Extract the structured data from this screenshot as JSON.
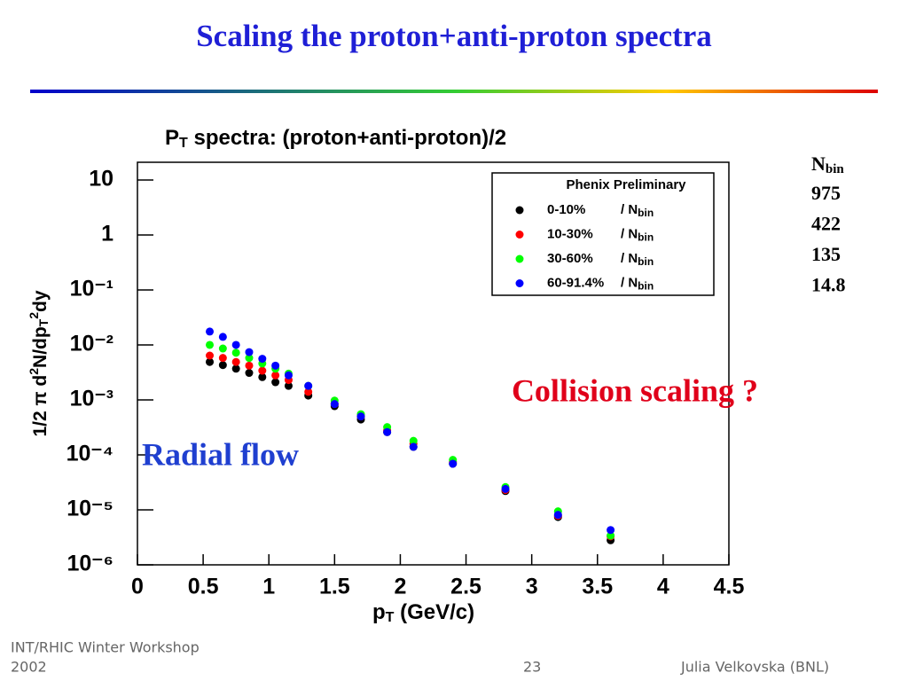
{
  "slide_title": "Scaling the proton+anti-proton spectra",
  "footer": {
    "left": [
      "INT/RHIC Winter Workshop",
      "2002"
    ],
    "page": "23",
    "author": "Julia Velkovska (BNL)"
  },
  "nbin_table": {
    "header": [
      "N",
      "bin"
    ],
    "values": [
      975,
      422,
      135,
      14.8
    ]
  },
  "chart_data": {
    "type": "scatter",
    "title": [
      "P",
      "T",
      " spectra: (proton+anti-proton)/2"
    ],
    "xlabel": [
      "p",
      "T",
      " (GeV/c)"
    ],
    "ylabel": [
      "1/2 π d",
      "2",
      "N/dp",
      "T",
      "2",
      "dy"
    ],
    "legend_title": "Phenix Preliminary",
    "legend_suffix": [
      "/ N",
      "bin"
    ],
    "annotations": [
      {
        "text": "Collision scaling ?",
        "color": "#e0001a"
      },
      {
        "text": "Radial flow",
        "color": "#1f3fd0"
      }
    ],
    "log_y": true,
    "x": [
      0.55,
      0.65,
      0.75,
      0.85,
      0.95,
      1.05,
      1.15,
      1.3,
      1.5,
      1.7,
      1.9,
      2.1,
      2.4,
      2.8,
      3.2,
      3.6
    ],
    "series": [
      {
        "name": "0-10%",
        "color": "#000000",
        "values": [
          0.0049,
          0.0043,
          0.0037,
          0.0031,
          0.0026,
          0.0021,
          0.0018,
          0.0012,
          0.00077,
          0.00044,
          0.00026,
          0.00014,
          6.9e-05,
          2.2e-05,
          7.4e-06,
          2.8e-06
        ]
      },
      {
        "name": "10-30%",
        "color": "#ff0000",
        "values": [
          0.0064,
          0.0058,
          0.0049,
          0.0042,
          0.0034,
          0.0028,
          0.0023,
          0.0014,
          0.00084,
          0.0005,
          0.00028,
          0.00016,
          7.4e-05,
          2.3e-05,
          7.8e-06,
          3.3e-06
        ]
      },
      {
        "name": "30-60%",
        "color": "#00ff00",
        "values": [
          0.01,
          0.0086,
          0.0072,
          0.0058,
          0.0046,
          0.0037,
          0.003,
          0.0018,
          0.00097,
          0.00055,
          0.00032,
          0.00018,
          8.1e-05,
          2.6e-05,
          9.4e-06,
          3.4e-06
        ]
      },
      {
        "name": "60-91.4%",
        "color": "#0000ff",
        "values": [
          0.0175,
          0.014,
          0.01,
          0.0074,
          0.0056,
          0.0042,
          0.0028,
          0.0018,
          0.00084,
          0.0005,
          0.00026,
          0.00014,
          6.9e-05,
          2.4e-05,
          8.1e-06,
          4.3e-06
        ]
      }
    ],
    "xlim": [
      0,
      4.5
    ],
    "xticks": [
      0,
      0.5,
      1,
      1.5,
      2,
      2.5,
      3,
      3.5,
      4,
      4.5
    ],
    "ylim": [
      1e-06,
      21
    ],
    "yticks": [
      {
        "value": 1e-06,
        "label": "10⁻⁶"
      },
      {
        "value": 1e-05,
        "label": "10⁻⁵"
      },
      {
        "value": 0.0001,
        "label": "10⁻⁴"
      },
      {
        "value": 0.001,
        "label": "10⁻³"
      },
      {
        "value": 0.01,
        "label": "10⁻²"
      },
      {
        "value": 0.1,
        "label": "10⁻¹"
      },
      1,
      10
    ]
  }
}
